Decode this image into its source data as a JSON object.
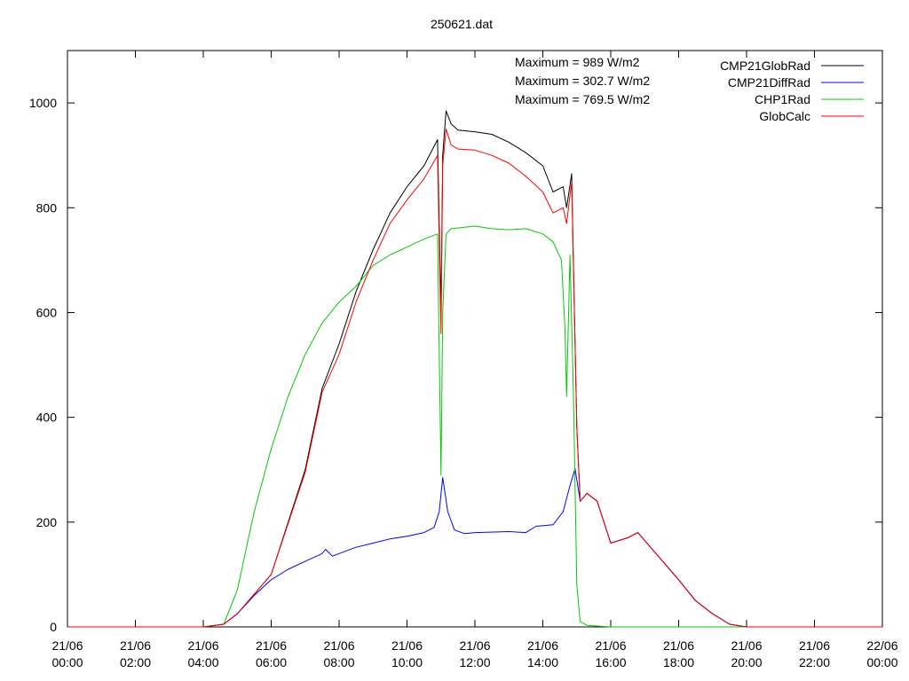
{
  "chart_data": {
    "type": "line",
    "title": "250621.dat",
    "xlabel": "",
    "ylabel": "",
    "xlim_hours": [
      0,
      24
    ],
    "ylim": [
      0,
      1100
    ],
    "grid": false,
    "legend_position": "top-right",
    "y_ticks": [
      "0",
      "200",
      "400",
      "600",
      "800",
      "1000"
    ],
    "x_ticks": [
      {
        "date": "21/06",
        "time": "00:00"
      },
      {
        "date": "21/06",
        "time": "02:00"
      },
      {
        "date": "21/06",
        "time": "04:00"
      },
      {
        "date": "21/06",
        "time": "06:00"
      },
      {
        "date": "21/06",
        "time": "08:00"
      },
      {
        "date": "21/06",
        "time": "10:00"
      },
      {
        "date": "21/06",
        "time": "12:00"
      },
      {
        "date": "21/06",
        "time": "14:00"
      },
      {
        "date": "21/06",
        "time": "16:00"
      },
      {
        "date": "21/06",
        "time": "18:00"
      },
      {
        "date": "21/06",
        "time": "20:00"
      },
      {
        "date": "21/06",
        "time": "22:00"
      },
      {
        "date": "22/06",
        "time": "00:00"
      }
    ],
    "annotations": [
      "Maximum = 989 W/m2",
      "Maximum = 302.7 W/m2",
      "Maximum = 769.5 W/m2"
    ],
    "series": [
      {
        "name": "CMP21GlobRad",
        "color": "#000000",
        "points": [
          [
            0,
            0
          ],
          [
            4,
            0
          ],
          [
            4.6,
            5
          ],
          [
            5,
            25
          ],
          [
            6,
            100
          ],
          [
            7,
            300
          ],
          [
            7.5,
            455
          ],
          [
            8,
            540
          ],
          [
            8.5,
            640
          ],
          [
            9,
            720
          ],
          [
            9.5,
            790
          ],
          [
            10,
            840
          ],
          [
            10.5,
            880
          ],
          [
            10.9,
            930
          ],
          [
            11.0,
            600
          ],
          [
            11.05,
            900
          ],
          [
            11.15,
            985
          ],
          [
            11.3,
            960
          ],
          [
            11.5,
            948
          ],
          [
            12,
            945
          ],
          [
            12.5,
            940
          ],
          [
            13,
            925
          ],
          [
            13.5,
            905
          ],
          [
            14,
            880
          ],
          [
            14.3,
            830
          ],
          [
            14.6,
            840
          ],
          [
            14.7,
            800
          ],
          [
            14.85,
            865
          ],
          [
            14.9,
            700
          ],
          [
            15.0,
            380
          ],
          [
            15.1,
            240
          ],
          [
            15.3,
            255
          ],
          [
            15.6,
            240
          ],
          [
            16,
            160
          ],
          [
            16.5,
            170
          ],
          [
            16.8,
            180
          ],
          [
            17.2,
            150
          ],
          [
            18,
            90
          ],
          [
            18.5,
            50
          ],
          [
            19,
            25
          ],
          [
            19.5,
            5
          ],
          [
            20,
            0
          ],
          [
            24,
            0
          ]
        ]
      },
      {
        "name": "CMP21DiffRad",
        "color": "#0000ff",
        "points": [
          [
            0,
            0
          ],
          [
            4,
            0
          ],
          [
            4.6,
            5
          ],
          [
            5,
            25
          ],
          [
            5.5,
            60
          ],
          [
            6,
            90
          ],
          [
            6.5,
            110
          ],
          [
            7,
            125
          ],
          [
            7.5,
            140
          ],
          [
            7.6,
            148
          ],
          [
            7.8,
            135
          ],
          [
            8,
            140
          ],
          [
            8.5,
            152
          ],
          [
            9,
            160
          ],
          [
            9.5,
            168
          ],
          [
            10,
            173
          ],
          [
            10.5,
            180
          ],
          [
            10.8,
            190
          ],
          [
            10.95,
            220
          ],
          [
            11.05,
            285
          ],
          [
            11.2,
            220
          ],
          [
            11.4,
            185
          ],
          [
            11.7,
            178
          ],
          [
            12,
            180
          ],
          [
            13,
            182
          ],
          [
            13.5,
            180
          ],
          [
            13.8,
            192
          ],
          [
            14.3,
            195
          ],
          [
            14.6,
            220
          ],
          [
            14.8,
            270
          ],
          [
            14.95,
            302
          ],
          [
            15.1,
            240
          ],
          [
            15.3,
            255
          ],
          [
            15.6,
            240
          ],
          [
            16,
            160
          ],
          [
            16.5,
            170
          ],
          [
            16.8,
            180
          ],
          [
            17.2,
            150
          ],
          [
            18,
            90
          ],
          [
            18.5,
            50
          ],
          [
            19,
            25
          ],
          [
            19.5,
            5
          ],
          [
            20,
            0
          ],
          [
            24,
            0
          ]
        ]
      },
      {
        "name": "CHP1Rad",
        "color": "#00cc00",
        "points": [
          [
            0,
            0
          ],
          [
            4,
            0
          ],
          [
            4.6,
            5
          ],
          [
            5,
            70
          ],
          [
            5.5,
            220
          ],
          [
            6,
            340
          ],
          [
            6.5,
            440
          ],
          [
            7,
            520
          ],
          [
            7.5,
            580
          ],
          [
            8,
            620
          ],
          [
            8.5,
            650
          ],
          [
            9,
            690
          ],
          [
            9.5,
            710
          ],
          [
            10,
            725
          ],
          [
            10.5,
            740
          ],
          [
            10.9,
            750
          ],
          [
            11.0,
            290
          ],
          [
            11.05,
            600
          ],
          [
            11.15,
            750
          ],
          [
            11.3,
            760
          ],
          [
            12,
            765
          ],
          [
            12.5,
            760
          ],
          [
            13,
            758
          ],
          [
            13.5,
            760
          ],
          [
            14,
            750
          ],
          [
            14.3,
            735
          ],
          [
            14.55,
            700
          ],
          [
            14.65,
            570
          ],
          [
            14.7,
            440
          ],
          [
            14.8,
            710
          ],
          [
            14.9,
            450
          ],
          [
            15.0,
            80
          ],
          [
            15.1,
            10
          ],
          [
            15.3,
            3
          ],
          [
            16,
            0
          ],
          [
            24,
            0
          ]
        ]
      },
      {
        "name": "GlobCalc",
        "color": "#ff0000",
        "points": [
          [
            0,
            0
          ],
          [
            4,
            0
          ],
          [
            4.6,
            5
          ],
          [
            5,
            25
          ],
          [
            6,
            100
          ],
          [
            7,
            295
          ],
          [
            7.5,
            448
          ],
          [
            8,
            520
          ],
          [
            8.5,
            620
          ],
          [
            9,
            700
          ],
          [
            9.5,
            770
          ],
          [
            10,
            815
          ],
          [
            10.5,
            855
          ],
          [
            10.9,
            900
          ],
          [
            11.0,
            560
          ],
          [
            11.05,
            880
          ],
          [
            11.15,
            950
          ],
          [
            11.3,
            920
          ],
          [
            11.5,
            912
          ],
          [
            12,
            910
          ],
          [
            12.5,
            900
          ],
          [
            13,
            885
          ],
          [
            13.5,
            860
          ],
          [
            14,
            830
          ],
          [
            14.3,
            790
          ],
          [
            14.6,
            800
          ],
          [
            14.7,
            770
          ],
          [
            14.85,
            850
          ],
          [
            14.9,
            690
          ],
          [
            15.0,
            380
          ],
          [
            15.1,
            240
          ],
          [
            15.3,
            255
          ],
          [
            15.6,
            240
          ],
          [
            16,
            160
          ],
          [
            16.5,
            170
          ],
          [
            16.8,
            180
          ],
          [
            17.2,
            150
          ],
          [
            18,
            90
          ],
          [
            18.5,
            50
          ],
          [
            19,
            25
          ],
          [
            19.5,
            5
          ],
          [
            20,
            0
          ],
          [
            24,
            0
          ]
        ]
      }
    ]
  }
}
